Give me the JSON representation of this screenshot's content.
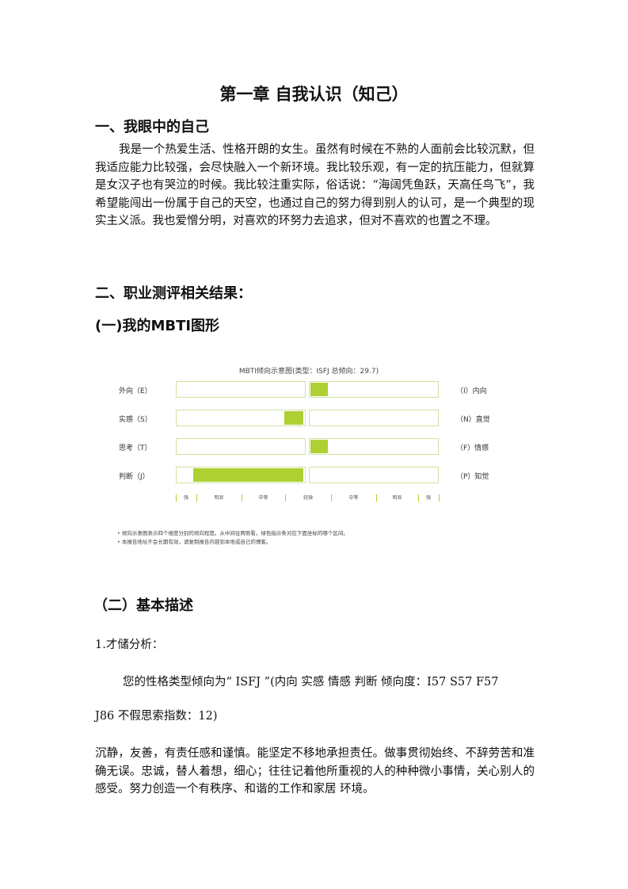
{
  "title": "第一章 自我认识（知己）",
  "section1": {
    "heading": "一、我眼中的自己",
    "text": "我是一个热爱生活、性格开朗的女生。虽然有时候在不熟的人面前会比较沉默，但我适应能力比较强，会尽快融入一个新环境。我比较乐观，有一定的抗压能力，但就算是女汉子也有哭泣的时候。我比较注重实际，俗话说：“海阔凭鱼跃，天高任鸟飞”，我希望能闯出一份属于自己的天空，也通过自己的努力得到别人的认可，是一个典型的现实主义派。我也爱憎分明，对喜欢的环努力去追求，但对不喜欢的也置之不理。"
  },
  "section2": {
    "heading": "二、职业测评相关结果：",
    "sub1": "(一)我的MBTI图形",
    "sub2": "（二）基本描述"
  },
  "chart_data": {
    "type": "bar",
    "title": "MBTI倾向示意图(类型：ISFJ 总倾向：29.7)",
    "rows": [
      {
        "left": "外向（E）",
        "right": "（I）内向",
        "side": "right",
        "strength": 0.14
      },
      {
        "left": "实感（S）",
        "right": "（N）直觉",
        "side": "left",
        "strength": 0.15
      },
      {
        "left": "思考（T）",
        "right": "（F）情感",
        "side": "right",
        "strength": 0.14
      },
      {
        "left": "判断（J）",
        "right": "（P）知觉",
        "side": "left",
        "strength": 0.88
      }
    ],
    "scale_labels": [
      "强",
      "明显",
      "中等",
      "轻微",
      "中等",
      "明显",
      "强"
    ],
    "bar_color": "#aed033"
  },
  "notes": [
    "倾向示意图表示四个维度分别的倾向程度。从中间往两侧看，绿色指示条对应下面坐标的哪个区间。",
    "本报告地址不会长期有效，请复制报告内容到本地或自己的博客。"
  ],
  "desc": {
    "label": "1.才储分析：",
    "line1": "您的性格类型倾向为“ ISFJ ”(内向 实感 情感 判断 倾向度：I57 S57 F57",
    "line2": "J86  不假思索指数：12)",
    "text": "沉静，友善，有责任感和谨慎。能坚定不移地承担责任。做事贯彻始终、不辞劳苦和准确无误。忠诚，替人着想，细心；往往记着他所重视的人的种种微小事情，关心别人的感受。努力创造一个有秩序、和谐的工作和家居 环境。"
  }
}
